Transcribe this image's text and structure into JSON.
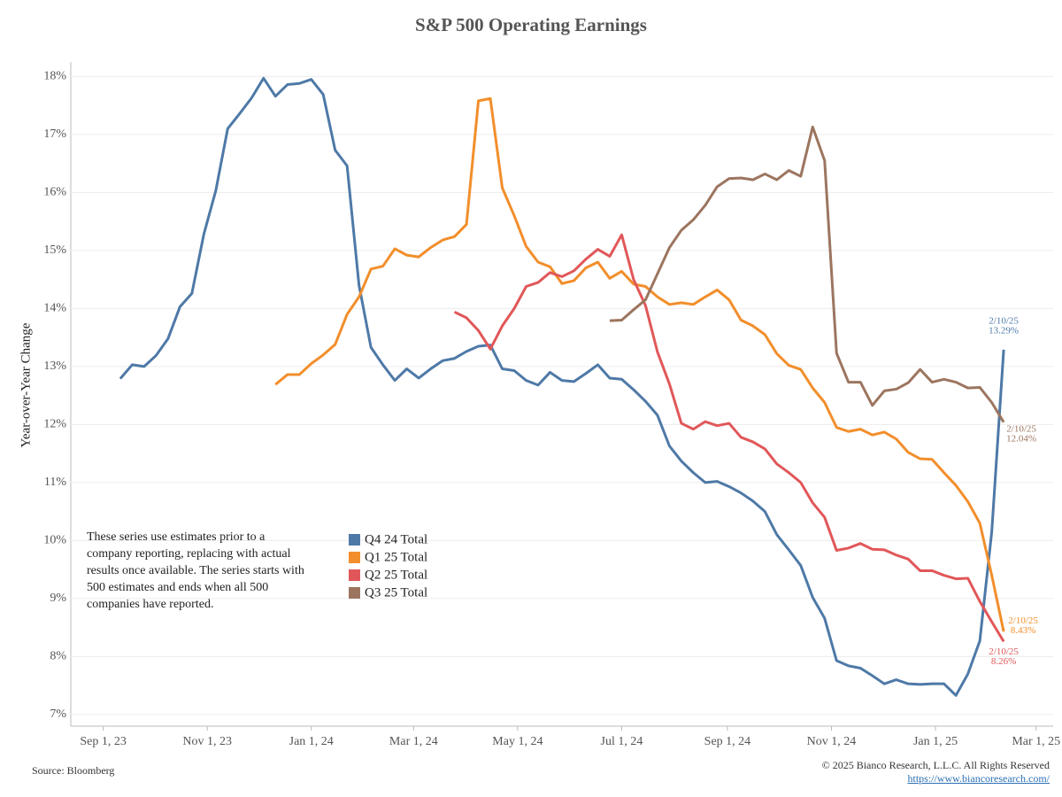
{
  "chart_data": {
    "type": "line",
    "title": "S&P 500 Operating Earnings",
    "y_label": "Year-over-Year Change",
    "note": "These series use estimates prior to a company reporting, replacing with actual results once available. The series starts with 500 estimates and ends when all 500 companies have reported.",
    "source": "Source: Bloomberg",
    "copyright": "© 2025 Bianco Research, L.L.C. All Rights Reserved",
    "url": "https://www.biancoresearch.com/",
    "x": [
      "2023-09-11",
      "2023-09-18",
      "2023-09-25",
      "2023-10-02",
      "2023-10-09",
      "2023-10-16",
      "2023-10-23",
      "2023-10-30",
      "2023-11-06",
      "2023-11-13",
      "2023-11-20",
      "2023-11-27",
      "2023-12-04",
      "2023-12-11",
      "2023-12-18",
      "2023-12-25",
      "2024-01-01",
      "2024-01-08",
      "2024-01-15",
      "2024-01-22",
      "2024-01-29",
      "2024-02-05",
      "2024-02-12",
      "2024-02-19",
      "2024-02-26",
      "2024-03-04",
      "2024-03-11",
      "2024-03-18",
      "2024-03-25",
      "2024-04-01",
      "2024-04-08",
      "2024-04-15",
      "2024-04-22",
      "2024-04-29",
      "2024-05-06",
      "2024-05-13",
      "2024-05-20",
      "2024-05-27",
      "2024-06-03",
      "2024-06-10",
      "2024-06-17",
      "2024-06-24",
      "2024-07-01",
      "2024-07-08",
      "2024-07-15",
      "2024-07-22",
      "2024-07-29",
      "2024-08-05",
      "2024-08-12",
      "2024-08-19",
      "2024-08-26",
      "2024-09-02",
      "2024-09-09",
      "2024-09-16",
      "2024-09-23",
      "2024-09-30",
      "2024-10-07",
      "2024-10-14",
      "2024-10-21",
      "2024-10-28",
      "2024-11-04",
      "2024-11-11",
      "2024-11-18",
      "2024-11-25",
      "2024-12-02",
      "2024-12-09",
      "2024-12-16",
      "2024-12-23",
      "2024-12-30",
      "2025-01-06",
      "2025-01-13",
      "2025-01-20",
      "2025-01-27",
      "2025-02-03",
      "2025-02-10"
    ],
    "xlim": [
      "2023-08-13",
      "2025-03-11"
    ],
    "xticks": [
      {
        "value": "2023-09-01",
        "label": "Sep 1, 23"
      },
      {
        "value": "2023-11-01",
        "label": "Nov 1, 23"
      },
      {
        "value": "2024-01-01",
        "label": "Jan 1, 24"
      },
      {
        "value": "2024-03-01",
        "label": "Mar 1, 24"
      },
      {
        "value": "2024-05-01",
        "label": "May 1, 24"
      },
      {
        "value": "2024-07-01",
        "label": "Jul 1, 24"
      },
      {
        "value": "2024-09-01",
        "label": "Sep 1, 24"
      },
      {
        "value": "2024-11-01",
        "label": "Nov 1, 24"
      },
      {
        "value": "2025-01-01",
        "label": "Jan 1, 25"
      },
      {
        "value": "2025-03-01",
        "label": "Mar 1, 25"
      }
    ],
    "ylim": [
      6.8,
      18.25
    ],
    "yticks": [
      {
        "value": 7,
        "label": "7%"
      },
      {
        "value": 8,
        "label": "8%"
      },
      {
        "value": 9,
        "label": "9%"
      },
      {
        "value": 10,
        "label": "10%"
      },
      {
        "value": 11,
        "label": "11%"
      },
      {
        "value": 12,
        "label": "12%"
      },
      {
        "value": 13,
        "label": "13%"
      },
      {
        "value": 14,
        "label": "14%"
      },
      {
        "value": 15,
        "label": "15%"
      },
      {
        "value": 16,
        "label": "16%"
      },
      {
        "value": 17,
        "label": "17%"
      },
      {
        "value": 18,
        "label": "18%"
      }
    ],
    "grid": true,
    "series": [
      {
        "name": "Q4 24 Total",
        "color": "#4e79a7",
        "label_date": "2/10/25",
        "value_label": "13.29%",
        "values": [
          12.79,
          13.03,
          13.0,
          13.19,
          13.48,
          14.03,
          14.26,
          15.28,
          16.03,
          17.1,
          17.36,
          17.63,
          17.97,
          17.66,
          17.86,
          17.88,
          17.95,
          17.69,
          16.73,
          16.46,
          14.4,
          13.33,
          13.03,
          12.76,
          12.96,
          12.8,
          12.96,
          13.1,
          13.14,
          13.26,
          13.35,
          13.37,
          12.96,
          12.93,
          12.76,
          12.68,
          12.9,
          12.76,
          12.74,
          12.88,
          13.03,
          12.8,
          12.78,
          12.6,
          12.4,
          12.16,
          11.63,
          11.37,
          11.17,
          11.0,
          11.02,
          10.93,
          10.82,
          10.68,
          10.5,
          10.1,
          9.84,
          9.57,
          9.02,
          8.66,
          7.93,
          7.84,
          7.8,
          7.67,
          7.53,
          7.6,
          7.53,
          7.52,
          7.53,
          7.53,
          7.33,
          7.7,
          8.27,
          10.15,
          13.29
        ]
      },
      {
        "name": "Q1 25 Total",
        "color": "#f28e2b",
        "label_date": "2/10/25",
        "value_label": "8.43%",
        "values": [
          null,
          null,
          null,
          null,
          null,
          null,
          null,
          null,
          null,
          null,
          null,
          null,
          null,
          12.69,
          12.86,
          12.86,
          13.05,
          13.2,
          13.38,
          13.9,
          14.2,
          14.68,
          14.73,
          15.03,
          14.92,
          14.89,
          15.05,
          15.18,
          15.24,
          15.45,
          17.58,
          17.62,
          16.08,
          15.6,
          15.07,
          14.8,
          14.72,
          14.43,
          14.48,
          14.7,
          14.8,
          14.52,
          14.64,
          14.42,
          14.38,
          14.2,
          14.07,
          14.1,
          14.07,
          14.2,
          14.32,
          14.15,
          13.8,
          13.7,
          13.55,
          13.22,
          13.02,
          12.95,
          12.63,
          12.38,
          11.95,
          11.88,
          11.92,
          11.82,
          11.87,
          11.75,
          11.52,
          11.41,
          11.4,
          11.17,
          10.95,
          10.67,
          10.3,
          9.4,
          8.43
        ]
      },
      {
        "name": "Q2 25 Total",
        "color": "#e15759",
        "label_date": "2/10/25",
        "value_label": "8.26%",
        "values": [
          null,
          null,
          null,
          null,
          null,
          null,
          null,
          null,
          null,
          null,
          null,
          null,
          null,
          null,
          null,
          null,
          null,
          null,
          null,
          null,
          null,
          null,
          null,
          null,
          null,
          null,
          null,
          null,
          13.94,
          13.84,
          13.62,
          13.3,
          13.7,
          14.0,
          14.38,
          14.45,
          14.62,
          14.55,
          14.65,
          14.85,
          15.02,
          14.9,
          15.27,
          14.5,
          14.05,
          13.25,
          12.7,
          12.02,
          11.92,
          12.05,
          11.98,
          12.02,
          11.78,
          11.7,
          11.58,
          11.32,
          11.17,
          11.0,
          10.65,
          10.4,
          9.83,
          9.87,
          9.95,
          9.85,
          9.84,
          9.75,
          9.68,
          9.48,
          9.48,
          9.4,
          9.34,
          9.35,
          8.95,
          8.6,
          8.26
        ]
      },
      {
        "name": "Q3 25 Total",
        "color": "#9c755f",
        "label_date": "2/10/25",
        "value_label": "12.04%",
        "values": [
          null,
          null,
          null,
          null,
          null,
          null,
          null,
          null,
          null,
          null,
          null,
          null,
          null,
          null,
          null,
          null,
          null,
          null,
          null,
          null,
          null,
          null,
          null,
          null,
          null,
          null,
          null,
          null,
          null,
          null,
          null,
          null,
          null,
          null,
          null,
          null,
          null,
          null,
          null,
          null,
          null,
          13.79,
          13.8,
          13.98,
          14.15,
          14.6,
          15.05,
          15.35,
          15.53,
          15.78,
          16.1,
          16.24,
          16.25,
          16.22,
          16.32,
          16.22,
          16.38,
          16.28,
          17.13,
          16.55,
          13.23,
          12.73,
          12.73,
          12.33,
          12.58,
          12.61,
          12.72,
          12.95,
          12.73,
          12.78,
          12.73,
          12.63,
          12.64,
          12.38,
          12.04
        ]
      }
    ]
  }
}
